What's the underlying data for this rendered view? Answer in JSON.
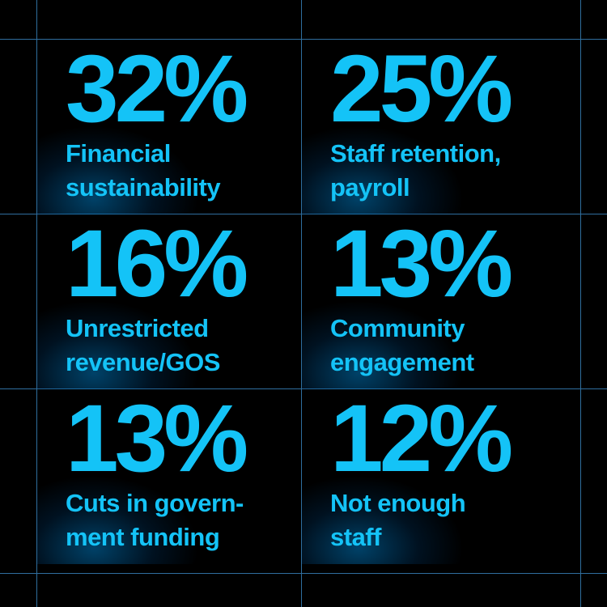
{
  "items": [
    {
      "value": "32%",
      "label": [
        "Financial",
        "sustainability"
      ]
    },
    {
      "value": "25%",
      "label": [
        "Staff retention,",
        "payroll"
      ]
    },
    {
      "value": "16%",
      "label": [
        "Unrestricted",
        "revenue/GOS"
      ]
    },
    {
      "value": "13%",
      "label": [
        "Community",
        "engagement"
      ]
    },
    {
      "value": "13%",
      "label": [
        "Cuts in govern-",
        "ment funding"
      ]
    },
    {
      "value": "12%",
      "label": [
        "Not enough",
        "staff"
      ]
    }
  ]
}
